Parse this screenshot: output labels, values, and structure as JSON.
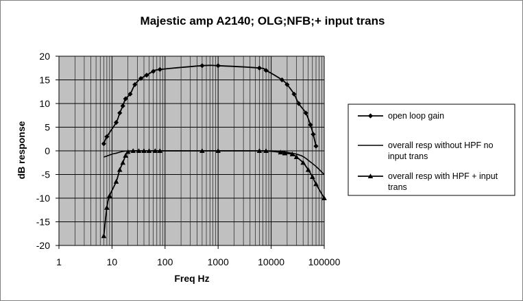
{
  "chart_data": {
    "type": "line",
    "title": "Majestic amp A2140;  OLG;NFB;+ input trans",
    "xlabel": "Freq Hz",
    "ylabel": "dB response",
    "xscale": "log",
    "xlim": [
      1,
      100000
    ],
    "ylim": [
      -20,
      20
    ],
    "xticks": [
      1,
      10,
      100,
      1000,
      10000,
      100000
    ],
    "xtick_labels": [
      "1",
      "10",
      "100",
      "1000",
      "10000",
      "100000"
    ],
    "yticks": [
      -20,
      -15,
      -10,
      -5,
      0,
      5,
      10,
      15,
      20
    ],
    "ytick_labels": [
      "-20",
      "-15",
      "-10",
      "-5",
      "0",
      "5",
      "10",
      "15",
      "20"
    ],
    "grid": true,
    "plot_background": "#c0c0c0",
    "legend_position": "right",
    "series": [
      {
        "name": "open loop gain",
        "legend_lines": [
          "open loop gain"
        ],
        "marker": "diamond",
        "x": [
          7,
          8,
          12,
          14,
          16,
          18,
          22,
          27,
          35,
          45,
          60,
          80,
          500,
          1000,
          6000,
          8000,
          16000,
          20000,
          27000,
          33000,
          45000,
          55000,
          62000,
          70000
        ],
        "y": [
          1.5,
          3,
          6,
          8,
          9.5,
          11,
          12,
          14,
          15.3,
          16,
          16.8,
          17.2,
          18,
          18,
          17.5,
          17,
          15,
          14,
          12,
          10,
          8,
          5.5,
          3.5,
          1
        ]
      },
      {
        "name": "overall resp without HPF no input trans",
        "legend_lines": [
          "overall resp without HPF no",
          "input trans"
        ],
        "marker": "none",
        "x": [
          7,
          8,
          10,
          12,
          15,
          18,
          22,
          30,
          50,
          100,
          1000,
          10000,
          15000,
          20000,
          30000,
          40000,
          50000,
          70000,
          100000
        ],
        "y": [
          -1.3,
          -1.1,
          -0.7,
          -0.5,
          -0.2,
          -0.05,
          0,
          0,
          0,
          0,
          0,
          0,
          -0.1,
          -0.3,
          -0.7,
          -1.2,
          -2,
          -3.3,
          -5
        ]
      },
      {
        "name": "overall resp with HPF + input trans",
        "legend_lines": [
          "overall resp with HPF + input",
          "trans"
        ],
        "marker": "triangle",
        "x": [
          7,
          8,
          9,
          12,
          14,
          16,
          18,
          20,
          25,
          32,
          40,
          50,
          65,
          80,
          500,
          1000,
          6000,
          8000,
          15000,
          18000,
          25000,
          30000,
          40000,
          50000,
          60000,
          70000,
          100000
        ],
        "y": [
          -18,
          -12,
          -9.5,
          -6.5,
          -4,
          -2.5,
          -1,
          -0.2,
          0,
          0,
          0,
          0,
          0,
          0,
          0,
          0,
          0,
          0,
          -0.3,
          -0.5,
          -0.7,
          -1.3,
          -2.5,
          -4,
          -5.5,
          -7,
          -10
        ]
      }
    ]
  }
}
